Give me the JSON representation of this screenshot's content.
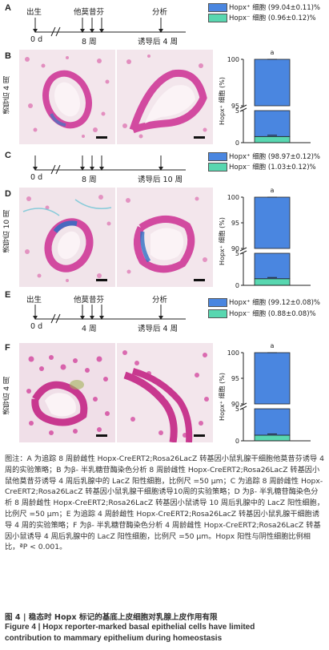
{
  "timelines": [
    {
      "panel": "A",
      "birth": "出生",
      "drug": "他莫昔芬",
      "analysis": "分析",
      "start": "0 d",
      "mid": "8 周",
      "end": "诱导后 4 周",
      "legend": [
        {
          "label": "Hopx⁺ 细胞 (99.04±0.11)%",
          "color": "#4a86e0"
        },
        {
          "label": "Hopx⁻ 细胞 (0.96±0.12)%",
          "color": "#58d7b0"
        }
      ]
    },
    {
      "panel": "C",
      "mid": "8 周",
      "start": "0 d",
      "end": "诱导后 10 周",
      "legend": [
        {
          "label": "Hopx⁺ 细胞 (98.97±0.12)%",
          "color": "#4a86e0"
        },
        {
          "label": "Hopx⁻ 细胞 (1.03±0.12)%",
          "color": "#58d7b0"
        }
      ]
    },
    {
      "panel": "E",
      "birth": "出生",
      "drug": "他莫昔芬",
      "analysis": "分析",
      "start": "0 d",
      "mid": "4 周",
      "end": "诱导后 4 周",
      "legend": [
        {
          "label": "Hopx⁺ 细胞 (99.12±0.08)%",
          "color": "#4a86e0"
        },
        {
          "label": "Hopx⁻ 细胞 (0.88±0.08)%",
          "color": "#58d7b0"
        }
      ]
    }
  ],
  "image_panels": [
    {
      "panel": "B",
      "side_label": "诱导后 4 周"
    },
    {
      "panel": "D",
      "side_label": "诱导后 10 周"
    },
    {
      "panel": "F",
      "side_label": "诱导后 4 周"
    }
  ],
  "chart_data": [
    {
      "type": "bar",
      "panel": "B",
      "ylabel": "Hopx⁺ 细胞 (%)",
      "yticks": [
        0,
        5,
        95,
        100
      ],
      "ylim": [
        0,
        100
      ],
      "axis_break": [
        5,
        95
      ],
      "series": [
        {
          "name": "Hopx⁺",
          "values": [
            99.04
          ]
        },
        {
          "name": "Hopx⁻",
          "values": [
            0.96
          ]
        }
      ],
      "annotation": "a"
    },
    {
      "type": "bar",
      "panel": "D",
      "ylabel": "Hopx⁺ 细胞 (%)",
      "yticks": [
        0,
        5,
        90,
        95,
        100
      ],
      "ylim": [
        0,
        100
      ],
      "axis_break": [
        5,
        90
      ],
      "series": [
        {
          "name": "Hopx⁺",
          "values": [
            98.97
          ]
        },
        {
          "name": "Hopx⁻",
          "values": [
            1.03
          ]
        }
      ],
      "annotation": "a"
    },
    {
      "type": "bar",
      "panel": "F",
      "ylabel": "Hopx⁺ 细胞 (%)",
      "yticks": [
        0,
        5,
        90,
        95,
        100
      ],
      "ylim": [
        0,
        100
      ],
      "axis_break": [
        5,
        90
      ],
      "series": [
        {
          "name": "Hopx⁺",
          "values": [
            99.12
          ]
        },
        {
          "name": "Hopx⁻",
          "values": [
            0.88
          ]
        }
      ],
      "annotation": "a"
    }
  ],
  "caption": {
    "text": "图注：A 为追踪 8 周龄雌性 Hopx-CreERT2;Rosa26LacZ 转基因小鼠乳腺干细胞他莫昔芬诱导 4 周的实验策略；B 为β- 半乳糖苷酶染色分析 8 周龄雌性 Hopx-CreERT2;Rosa26LacZ 转基因小鼠他莫昔芬诱导 4 周后乳腺中的 LacZ 阳性细胞，比例尺 =50 μm；C 为追踪 8 周龄雌性 Hopx-CreERT2;Rosa26LacZ 转基因小鼠乳腺干细胞诱导10周的实验策略；D 为β- 半乳糖苷酶染色分析 8 周龄雌性 Hopx-CreERT2;Rosa26LacZ 转基因小鼠诱导 10 周后乳腺中的 LacZ 阳性细胞，比例尺 =50 μm；E 为追踪 4 周龄雌性 Hopx-CreERT2;Rosa26LacZ 转基因小鼠乳腺干细胞诱导 4 周的实验策略；F 为β- 半乳糖苷酶染色分析 4 周龄雌性 Hopx-CreERT2;Rosa26LacZ 转基因小鼠诱导 4 周后乳腺中的 LacZ 阳性细胞，比例尺 =50 μm。Hopx 阳性与阴性细胞比例相比，ªP < 0.001。",
    "title_cn": "图 4  |  稳态时 Hopx 标记的基底上皮细胞对乳腺上皮作用有限",
    "title_en_1": "Figure 4  |  Hopx reporter-marked basal epithelial cells have limited",
    "title_en_2": "contribution to mammary epithelium during homeostasis"
  }
}
